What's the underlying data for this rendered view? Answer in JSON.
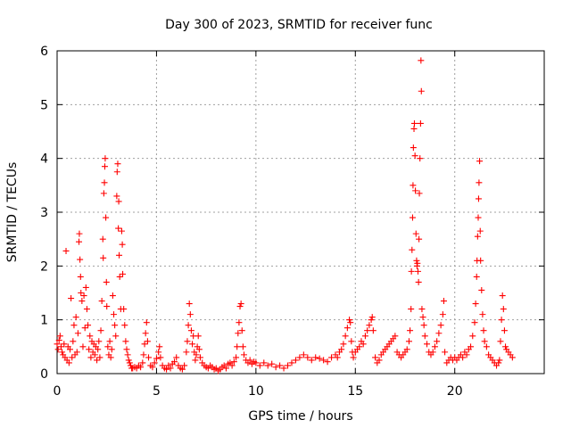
{
  "chart_data": {
    "type": "scatter",
    "title": "Day 300 of 2023, SRMTID for receiver func",
    "xlabel": "GPS time / hours",
    "ylabel": "SRMTID / TECUs",
    "xlim": [
      0,
      24.5
    ],
    "ylim": [
      0,
      6
    ],
    "xticks": [
      0,
      5,
      10,
      15,
      20
    ],
    "xtick_labels": [
      "0",
      "5",
      "10",
      "15",
      "20"
    ],
    "yticks": [
      0,
      1,
      2,
      3,
      4,
      5,
      6
    ],
    "ytick_labels": [
      "0",
      "1",
      "2",
      "3",
      "4",
      "5",
      "6"
    ],
    "grid": true,
    "marker": "+",
    "color": "#ff0000",
    "series": [
      {
        "name": "SRMTID",
        "points": [
          [
            0.0,
            0.55
          ],
          [
            0.05,
            0.45
          ],
          [
            0.1,
            0.62
          ],
          [
            0.15,
            0.7
          ],
          [
            0.2,
            0.5
          ],
          [
            0.25,
            0.4
          ],
          [
            0.3,
            0.35
          ],
          [
            0.35,
            0.55
          ],
          [
            0.4,
            0.3
          ],
          [
            0.45,
            2.28
          ],
          [
            0.5,
            0.25
          ],
          [
            0.55,
            0.5
          ],
          [
            0.6,
            0.2
          ],
          [
            0.65,
            0.45
          ],
          [
            0.7,
            1.4
          ],
          [
            0.75,
            0.3
          ],
          [
            0.8,
            0.6
          ],
          [
            0.85,
            0.9
          ],
          [
            0.9,
            0.35
          ],
          [
            0.95,
            1.05
          ],
          [
            1.0,
            0.4
          ],
          [
            1.05,
            0.75
          ],
          [
            1.1,
            2.45
          ],
          [
            1.12,
            2.6
          ],
          [
            1.15,
            2.12
          ],
          [
            1.18,
            1.8
          ],
          [
            1.2,
            1.5
          ],
          [
            1.25,
            1.35
          ],
          [
            1.3,
            0.5
          ],
          [
            1.35,
            1.45
          ],
          [
            1.4,
            0.85
          ],
          [
            1.45,
            1.6
          ],
          [
            1.5,
            1.2
          ],
          [
            1.55,
            0.9
          ],
          [
            1.6,
            0.45
          ],
          [
            1.65,
            0.7
          ],
          [
            1.7,
            0.3
          ],
          [
            1.75,
            0.6
          ],
          [
            1.8,
            0.4
          ],
          [
            1.85,
            0.55
          ],
          [
            1.9,
            0.35
          ],
          [
            1.95,
            0.5
          ],
          [
            2.0,
            0.25
          ],
          [
            2.05,
            0.45
          ],
          [
            2.1,
            0.6
          ],
          [
            2.15,
            0.3
          ],
          [
            2.2,
            0.8
          ],
          [
            2.25,
            1.35
          ],
          [
            2.3,
            2.5
          ],
          [
            2.32,
            2.15
          ],
          [
            2.35,
            3.35
          ],
          [
            2.38,
            3.55
          ],
          [
            2.4,
            3.85
          ],
          [
            2.42,
            4.0
          ],
          [
            2.45,
            2.9
          ],
          [
            2.48,
            1.7
          ],
          [
            2.5,
            1.25
          ],
          [
            2.55,
            0.5
          ],
          [
            2.6,
            0.35
          ],
          [
            2.65,
            0.6
          ],
          [
            2.7,
            0.3
          ],
          [
            2.75,
            0.45
          ],
          [
            2.8,
            1.45
          ],
          [
            2.85,
            1.1
          ],
          [
            2.9,
            0.9
          ],
          [
            2.95,
            0.7
          ],
          [
            3.0,
            3.3
          ],
          [
            3.02,
            3.75
          ],
          [
            3.05,
            3.9
          ],
          [
            3.08,
            2.7
          ],
          [
            3.1,
            3.2
          ],
          [
            3.12,
            2.2
          ],
          [
            3.15,
            1.8
          ],
          [
            3.2,
            1.2
          ],
          [
            3.25,
            2.65
          ],
          [
            3.28,
            2.4
          ],
          [
            3.3,
            1.85
          ],
          [
            3.35,
            1.2
          ],
          [
            3.4,
            0.9
          ],
          [
            3.45,
            0.6
          ],
          [
            3.5,
            0.45
          ],
          [
            3.55,
            0.35
          ],
          [
            3.6,
            0.25
          ],
          [
            3.65,
            0.2
          ],
          [
            3.7,
            0.15
          ],
          [
            3.75,
            0.1
          ],
          [
            3.8,
            0.1
          ],
          [
            3.9,
            0.12
          ],
          [
            4.0,
            0.1
          ],
          [
            4.1,
            0.15
          ],
          [
            4.2,
            0.12
          ],
          [
            4.3,
            0.2
          ],
          [
            4.35,
            0.35
          ],
          [
            4.4,
            0.55
          ],
          [
            4.45,
            0.75
          ],
          [
            4.5,
            0.95
          ],
          [
            4.55,
            0.6
          ],
          [
            4.6,
            0.3
          ],
          [
            4.7,
            0.15
          ],
          [
            4.8,
            0.12
          ],
          [
            4.9,
            0.2
          ],
          [
            5.0,
            0.28
          ],
          [
            5.1,
            0.4
          ],
          [
            5.15,
            0.5
          ],
          [
            5.2,
            0.3
          ],
          [
            5.3,
            0.15
          ],
          [
            5.4,
            0.1
          ],
          [
            5.5,
            0.08
          ],
          [
            5.6,
            0.15
          ],
          [
            5.7,
            0.1
          ],
          [
            5.8,
            0.18
          ],
          [
            5.9,
            0.22
          ],
          [
            6.0,
            0.3
          ],
          [
            6.1,
            0.15
          ],
          [
            6.2,
            0.1
          ],
          [
            6.3,
            0.08
          ],
          [
            6.4,
            0.15
          ],
          [
            6.5,
            0.4
          ],
          [
            6.55,
            0.6
          ],
          [
            6.6,
            0.9
          ],
          [
            6.65,
            1.3
          ],
          [
            6.7,
            1.1
          ],
          [
            6.75,
            0.8
          ],
          [
            6.8,
            0.55
          ],
          [
            6.85,
            0.7
          ],
          [
            6.9,
            0.4
          ],
          [
            6.95,
            0.25
          ],
          [
            7.0,
            0.35
          ],
          [
            7.05,
            0.5
          ],
          [
            7.1,
            0.7
          ],
          [
            7.15,
            0.45
          ],
          [
            7.2,
            0.3
          ],
          [
            7.3,
            0.2
          ],
          [
            7.4,
            0.15
          ],
          [
            7.5,
            0.12
          ],
          [
            7.6,
            0.1
          ],
          [
            7.7,
            0.15
          ],
          [
            7.8,
            0.12
          ],
          [
            7.9,
            0.08
          ],
          [
            8.0,
            0.1
          ],
          [
            8.1,
            0.05
          ],
          [
            8.2,
            0.08
          ],
          [
            8.3,
            0.12
          ],
          [
            8.4,
            0.15
          ],
          [
            8.5,
            0.1
          ],
          [
            8.6,
            0.18
          ],
          [
            8.7,
            0.2
          ],
          [
            8.8,
            0.15
          ],
          [
            8.9,
            0.22
          ],
          [
            9.0,
            0.3
          ],
          [
            9.05,
            0.5
          ],
          [
            9.1,
            0.75
          ],
          [
            9.15,
            0.95
          ],
          [
            9.2,
            1.25
          ],
          [
            9.25,
            1.3
          ],
          [
            9.3,
            0.8
          ],
          [
            9.35,
            0.5
          ],
          [
            9.4,
            0.35
          ],
          [
            9.5,
            0.25
          ],
          [
            9.6,
            0.2
          ],
          [
            9.7,
            0.25
          ],
          [
            9.8,
            0.18
          ],
          [
            9.9,
            0.22
          ],
          [
            10.0,
            0.2
          ],
          [
            10.2,
            0.15
          ],
          [
            10.4,
            0.2
          ],
          [
            10.6,
            0.15
          ],
          [
            10.8,
            0.18
          ],
          [
            11.0,
            0.12
          ],
          [
            11.2,
            0.15
          ],
          [
            11.4,
            0.1
          ],
          [
            11.6,
            0.15
          ],
          [
            11.8,
            0.2
          ],
          [
            12.0,
            0.25
          ],
          [
            12.2,
            0.3
          ],
          [
            12.4,
            0.35
          ],
          [
            12.6,
            0.3
          ],
          [
            12.8,
            0.25
          ],
          [
            13.0,
            0.3
          ],
          [
            13.2,
            0.28
          ],
          [
            13.4,
            0.25
          ],
          [
            13.6,
            0.22
          ],
          [
            13.8,
            0.3
          ],
          [
            14.0,
            0.35
          ],
          [
            14.1,
            0.3
          ],
          [
            14.2,
            0.4
          ],
          [
            14.3,
            0.45
          ],
          [
            14.4,
            0.55
          ],
          [
            14.5,
            0.7
          ],
          [
            14.6,
            0.85
          ],
          [
            14.7,
            1.0
          ],
          [
            14.75,
            0.95
          ],
          [
            14.8,
            0.6
          ],
          [
            14.85,
            0.4
          ],
          [
            14.9,
            0.3
          ],
          [
            15.0,
            0.4
          ],
          [
            15.1,
            0.45
          ],
          [
            15.2,
            0.5
          ],
          [
            15.3,
            0.6
          ],
          [
            15.4,
            0.55
          ],
          [
            15.5,
            0.7
          ],
          [
            15.6,
            0.8
          ],
          [
            15.7,
            0.9
          ],
          [
            15.8,
            1.0
          ],
          [
            15.85,
            1.05
          ],
          [
            15.9,
            0.8
          ],
          [
            16.0,
            0.3
          ],
          [
            16.1,
            0.2
          ],
          [
            16.2,
            0.25
          ],
          [
            16.3,
            0.35
          ],
          [
            16.4,
            0.4
          ],
          [
            16.5,
            0.45
          ],
          [
            16.6,
            0.5
          ],
          [
            16.7,
            0.55
          ],
          [
            16.8,
            0.6
          ],
          [
            16.9,
            0.65
          ],
          [
            17.0,
            0.7
          ],
          [
            17.1,
            0.4
          ],
          [
            17.2,
            0.35
          ],
          [
            17.3,
            0.3
          ],
          [
            17.4,
            0.35
          ],
          [
            17.5,
            0.4
          ],
          [
            17.6,
            0.45
          ],
          [
            17.7,
            0.6
          ],
          [
            17.75,
            0.8
          ],
          [
            17.8,
            1.2
          ],
          [
            17.82,
            1.9
          ],
          [
            17.85,
            2.3
          ],
          [
            17.88,
            2.9
          ],
          [
            17.9,
            3.5
          ],
          [
            17.92,
            4.2
          ],
          [
            17.95,
            4.55
          ],
          [
            17.97,
            4.65
          ],
          [
            18.0,
            4.05
          ],
          [
            18.02,
            3.4
          ],
          [
            18.05,
            2.6
          ],
          [
            18.08,
            2.1
          ],
          [
            18.1,
            2.0
          ],
          [
            18.12,
            2.05
          ],
          [
            18.15,
            1.9
          ],
          [
            18.18,
            1.7
          ],
          [
            18.2,
            2.5
          ],
          [
            18.22,
            3.35
          ],
          [
            18.25,
            4.0
          ],
          [
            18.28,
            4.65
          ],
          [
            18.3,
            5.82
          ],
          [
            18.32,
            5.25
          ],
          [
            18.35,
            1.2
          ],
          [
            18.4,
            1.05
          ],
          [
            18.45,
            0.9
          ],
          [
            18.5,
            0.7
          ],
          [
            18.6,
            0.55
          ],
          [
            18.7,
            0.4
          ],
          [
            18.8,
            0.35
          ],
          [
            18.9,
            0.4
          ],
          [
            19.0,
            0.5
          ],
          [
            19.1,
            0.6
          ],
          [
            19.2,
            0.75
          ],
          [
            19.3,
            0.9
          ],
          [
            19.4,
            1.1
          ],
          [
            19.45,
            1.35
          ],
          [
            19.5,
            0.4
          ],
          [
            19.6,
            0.2
          ],
          [
            19.7,
            0.25
          ],
          [
            19.8,
            0.3
          ],
          [
            19.9,
            0.25
          ],
          [
            20.0,
            0.3
          ],
          [
            20.1,
            0.25
          ],
          [
            20.2,
            0.3
          ],
          [
            20.3,
            0.35
          ],
          [
            20.4,
            0.3
          ],
          [
            20.5,
            0.4
          ],
          [
            20.6,
            0.35
          ],
          [
            20.7,
            0.45
          ],
          [
            20.8,
            0.5
          ],
          [
            20.9,
            0.7
          ],
          [
            21.0,
            0.95
          ],
          [
            21.05,
            1.3
          ],
          [
            21.1,
            1.8
          ],
          [
            21.12,
            2.1
          ],
          [
            21.15,
            2.55
          ],
          [
            21.18,
            2.9
          ],
          [
            21.2,
            3.25
          ],
          [
            21.22,
            3.55
          ],
          [
            21.25,
            3.95
          ],
          [
            21.28,
            2.65
          ],
          [
            21.3,
            2.1
          ],
          [
            21.35,
            1.55
          ],
          [
            21.4,
            1.1
          ],
          [
            21.45,
            0.8
          ],
          [
            21.5,
            0.6
          ],
          [
            21.6,
            0.5
          ],
          [
            21.7,
            0.35
          ],
          [
            21.8,
            0.3
          ],
          [
            21.9,
            0.25
          ],
          [
            22.0,
            0.2
          ],
          [
            22.1,
            0.15
          ],
          [
            22.2,
            0.2
          ],
          [
            22.25,
            0.25
          ],
          [
            22.3,
            0.6
          ],
          [
            22.35,
            1.0
          ],
          [
            22.4,
            1.45
          ],
          [
            22.45,
            1.2
          ],
          [
            22.5,
            0.8
          ],
          [
            22.55,
            0.5
          ],
          [
            22.6,
            0.45
          ],
          [
            22.7,
            0.4
          ],
          [
            22.8,
            0.35
          ],
          [
            22.9,
            0.3
          ]
        ]
      }
    ]
  }
}
